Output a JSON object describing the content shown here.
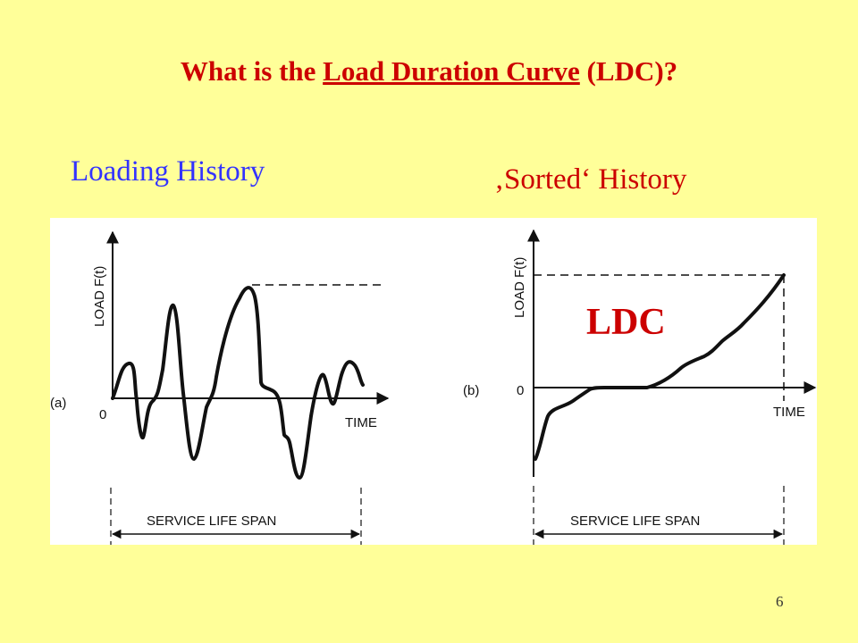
{
  "title": {
    "prefix": "What is the ",
    "term": "Load Duration Curve",
    "suffix": " (LDC)?"
  },
  "left_caption": "Loading History",
  "right_caption": "‚Sorted‘ History",
  "left_panel": {
    "tag": "(a)",
    "y_axis_label": "LOAD F(t)",
    "origin": "0",
    "x_axis_label": "TIME",
    "span_label": "SERVICE LIFE SPAN"
  },
  "right_panel": {
    "tag": "(b)",
    "y_axis_label": "LOAD F(t)",
    "origin": "0",
    "x_axis_label": "TIME",
    "span_label": "SERVICE LIFE SPAN",
    "curve_label": "LDC"
  },
  "page_number": "6",
  "colors": {
    "background": "#ffff99",
    "title": "#cc0000",
    "left_caption": "#3333ff",
    "right_caption": "#cc0000"
  }
}
